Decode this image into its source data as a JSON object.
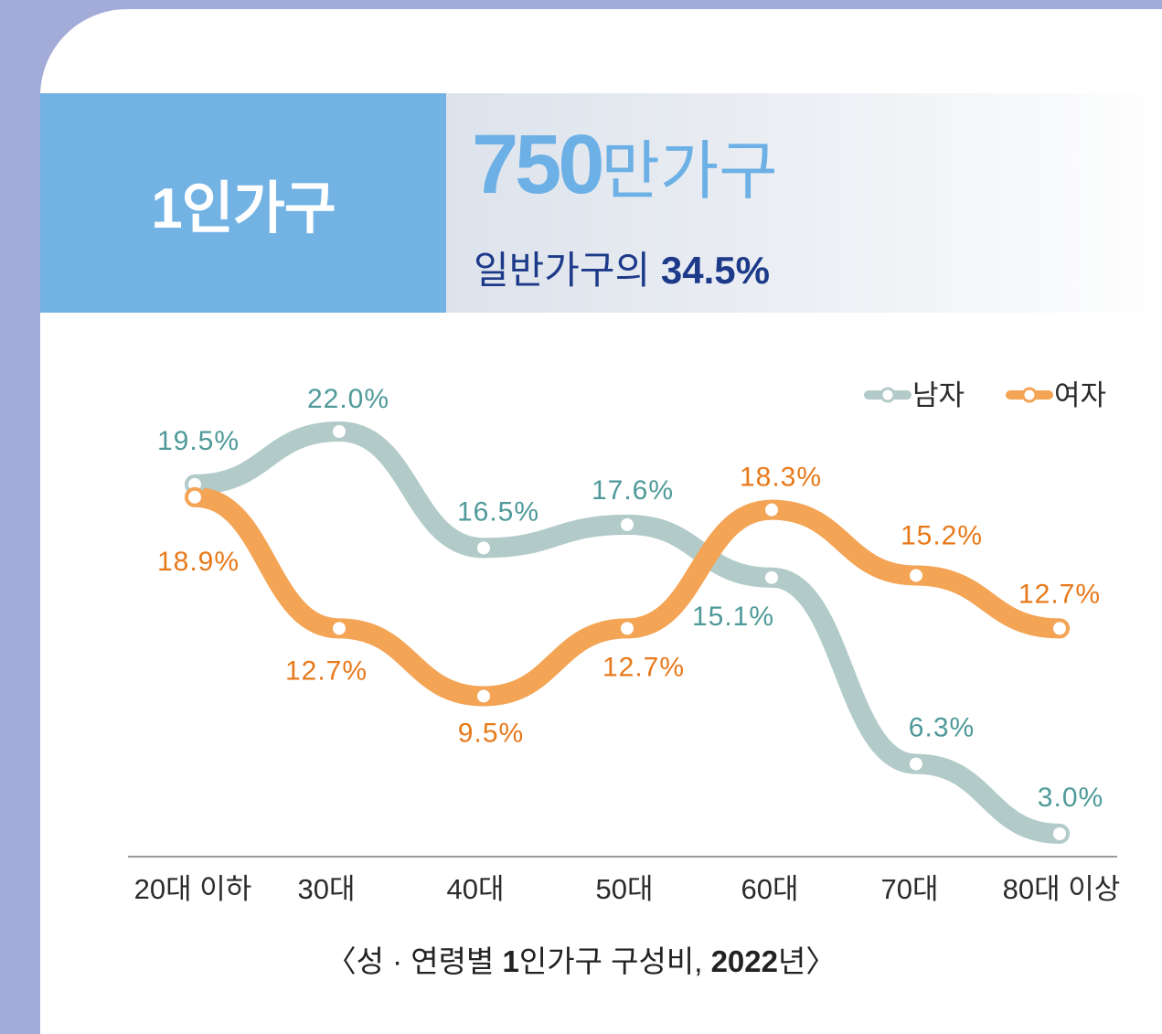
{
  "banner": {
    "title": "1인가구",
    "count_number": "750",
    "count_unit": "만가구",
    "share_prefix": "일반가구의 ",
    "share_value": "34.5%"
  },
  "colors": {
    "male": "#b2cbc9",
    "female": "#f4a455",
    "male_label": "#4f9a99",
    "female_label": "#e8791a",
    "banner_left": "#73b3e4",
    "accent_text": "#1d3a8a"
  },
  "chart_data": {
    "type": "line",
    "categories": [
      "20대 이하",
      "30대",
      "40대",
      "50대",
      "60대",
      "70대",
      "80대 이상"
    ],
    "series": [
      {
        "name": "남자",
        "values": [
          19.5,
          22.0,
          16.5,
          17.6,
          15.1,
          6.3,
          3.0
        ],
        "labels": [
          "19.5%",
          "22.0%",
          "16.5%",
          "17.6%",
          "15.1%",
          "6.3%",
          "3.0%"
        ]
      },
      {
        "name": "여자",
        "values": [
          18.9,
          12.7,
          9.5,
          12.7,
          18.3,
          15.2,
          12.7
        ],
        "labels": [
          "18.9%",
          "12.7%",
          "9.5%",
          "12.7%",
          "18.3%",
          "15.2%",
          "12.7%"
        ]
      }
    ],
    "ylim": [
      3.0,
      22.0
    ],
    "grid": false,
    "legend": "top-right",
    "title": "",
    "xlabel": "",
    "ylabel": ""
  },
  "caption": {
    "part1": "〈성 · 연령별 ",
    "part2": "1",
    "part3": "인가구 구성비, ",
    "part4": "2022",
    "part5": "년〉"
  }
}
